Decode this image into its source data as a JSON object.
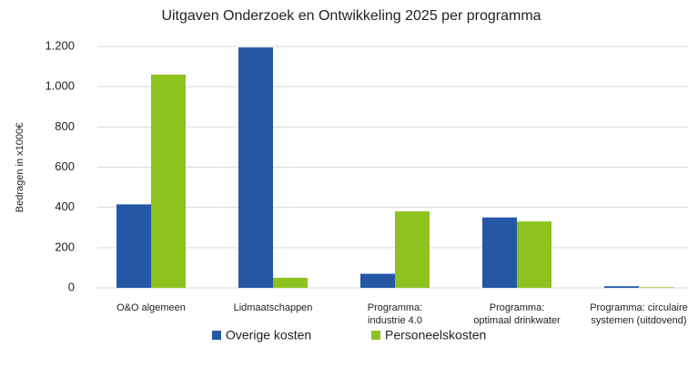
{
  "chart_data": {
    "type": "bar",
    "title": "Uitgaven Onderzoek en Ontwikkeling 2025 per programma",
    "y_label": "Bedragen in x1000€",
    "categories": [
      "O&O algemeen",
      "Lidmaatschappen",
      "Programma:\nindustrie 4.0",
      "Programma:\noptimaal drinkwater",
      "Programma: circulaire\nsystemen (uitdovend)"
    ],
    "series": [
      {
        "name": "Overige kosten",
        "color": "#2458a6",
        "values": [
          415,
          1195,
          70,
          350,
          8
        ]
      },
      {
        "name": "Personeelskosten",
        "color": "#8dc21f",
        "values": [
          1060,
          50,
          380,
          330,
          3
        ]
      }
    ],
    "ylim": [
      0,
      1200
    ],
    "yticks": [
      0,
      200,
      400,
      600,
      800,
      {
        "value": 1000,
        "label": "1.000"
      },
      {
        "value": 1200,
        "label": "1.200"
      }
    ],
    "grid": true,
    "legend": "bottom"
  }
}
